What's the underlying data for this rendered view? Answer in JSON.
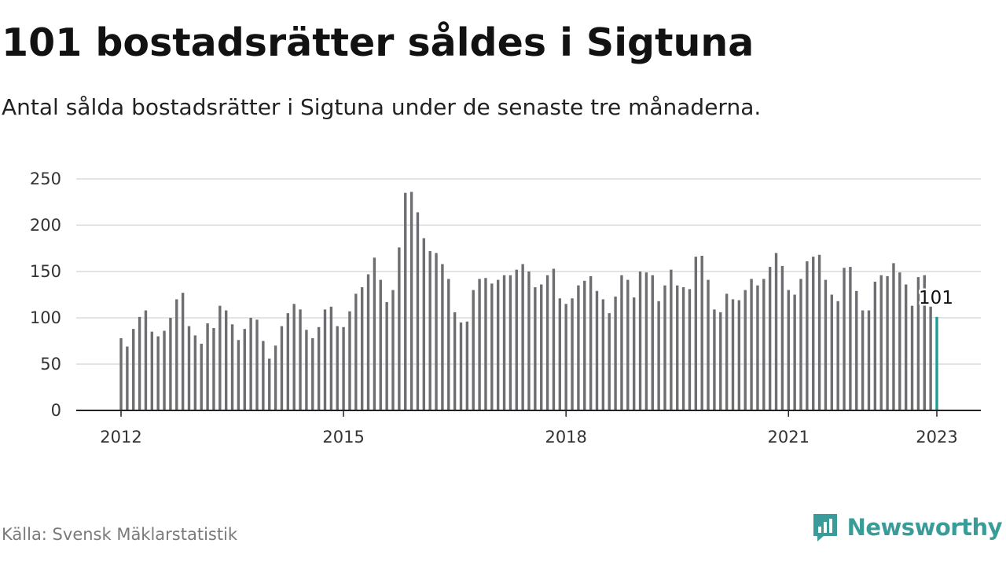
{
  "title": "101 bostadsrätter såldes i Sigtuna",
  "subtitle": "Antal sålda bostadsrätter i Sigtuna under de senaste tre månaderna.",
  "source": "Källa: Svensk Mäklarstatistik",
  "brand": {
    "name": "Newsworthy",
    "icon": "newsworthy-logo-icon",
    "color": "#3a9c98"
  },
  "chart_data": {
    "type": "bar",
    "ylim": [
      0,
      250
    ],
    "yticks": [
      0,
      50,
      100,
      150,
      200,
      250
    ],
    "xticks": [
      {
        "label": "2012",
        "x": 2012.0
      },
      {
        "label": "2015",
        "x": 2015.0
      },
      {
        "label": "2018",
        "x": 2018.0
      },
      {
        "label": "2021",
        "x": 2021.0
      },
      {
        "label": "2023",
        "x": 2023.0
      }
    ],
    "grid": true,
    "bar_color": "#6e6e72",
    "highlight_color": "#1f9c95",
    "highlight_label": "101",
    "categories": [
      "2012-01",
      "2012-02",
      "2012-03",
      "2012-04",
      "2012-05",
      "2012-06",
      "2012-07",
      "2012-08",
      "2012-09",
      "2012-10",
      "2012-11",
      "2012-12",
      "2013-01",
      "2013-02",
      "2013-03",
      "2013-04",
      "2013-05",
      "2013-06",
      "2013-07",
      "2013-08",
      "2013-09",
      "2013-10",
      "2013-11",
      "2013-12",
      "2014-01",
      "2014-02",
      "2014-03",
      "2014-04",
      "2014-05",
      "2014-06",
      "2014-07",
      "2014-08",
      "2014-09",
      "2014-10",
      "2014-11",
      "2014-12",
      "2015-01",
      "2015-02",
      "2015-03",
      "2015-04",
      "2015-05",
      "2015-06",
      "2015-07",
      "2015-08",
      "2015-09",
      "2015-10",
      "2015-11",
      "2015-12",
      "2016-01",
      "2016-02",
      "2016-03",
      "2016-04",
      "2016-05",
      "2016-06",
      "2016-07",
      "2016-08",
      "2016-09",
      "2016-10",
      "2016-11",
      "2016-12",
      "2017-01",
      "2017-02",
      "2017-03",
      "2017-04",
      "2017-05",
      "2017-06",
      "2017-07",
      "2017-08",
      "2017-09",
      "2017-10",
      "2017-11",
      "2017-12",
      "2018-01",
      "2018-02",
      "2018-03",
      "2018-04",
      "2018-05",
      "2018-06",
      "2018-07",
      "2018-08",
      "2018-09",
      "2018-10",
      "2018-11",
      "2018-12",
      "2019-01",
      "2019-02",
      "2019-03",
      "2019-04",
      "2019-05",
      "2019-06",
      "2019-07",
      "2019-08",
      "2019-09",
      "2019-10",
      "2019-11",
      "2019-12",
      "2020-01",
      "2020-02",
      "2020-03",
      "2020-04",
      "2020-05",
      "2020-06",
      "2020-07",
      "2020-08",
      "2020-09",
      "2020-10",
      "2020-11",
      "2020-12",
      "2021-01",
      "2021-02",
      "2021-03",
      "2021-04",
      "2021-05",
      "2021-06",
      "2021-07",
      "2021-08",
      "2021-09",
      "2021-10",
      "2021-11",
      "2021-12",
      "2022-01",
      "2022-02",
      "2022-03",
      "2022-04",
      "2022-05",
      "2022-06",
      "2022-07",
      "2022-08",
      "2022-09",
      "2022-10",
      "2022-11",
      "2022-12",
      "2023-01"
    ],
    "values": [
      78,
      69,
      88,
      101,
      108,
      85,
      80,
      86,
      100,
      120,
      127,
      91,
      81,
      72,
      94,
      89,
      113,
      108,
      93,
      76,
      88,
      100,
      98,
      75,
      56,
      70,
      91,
      105,
      115,
      109,
      87,
      78,
      90,
      109,
      112,
      91,
      90,
      107,
      126,
      133,
      147,
      165,
      141,
      117,
      130,
      176,
      235,
      236,
      214,
      186,
      172,
      170,
      158,
      142,
      106,
      95,
      96,
      130,
      142,
      143,
      137,
      141,
      146,
      146,
      152,
      158,
      150,
      133,
      136,
      146,
      153,
      121,
      115,
      121,
      135,
      140,
      145,
      129,
      120,
      105,
      123,
      146,
      141,
      122,
      150,
      149,
      146,
      118,
      135,
      152,
      135,
      133,
      131,
      166,
      167,
      141,
      109,
      106,
      126,
      120,
      119,
      130,
      142,
      135,
      142,
      155,
      170,
      156,
      130,
      125,
      142,
      161,
      166,
      168,
      141,
      125,
      118,
      154,
      155,
      129,
      108,
      108,
      139,
      146,
      145,
      159,
      149,
      136,
      113,
      144,
      146,
      112,
      101
    ]
  }
}
